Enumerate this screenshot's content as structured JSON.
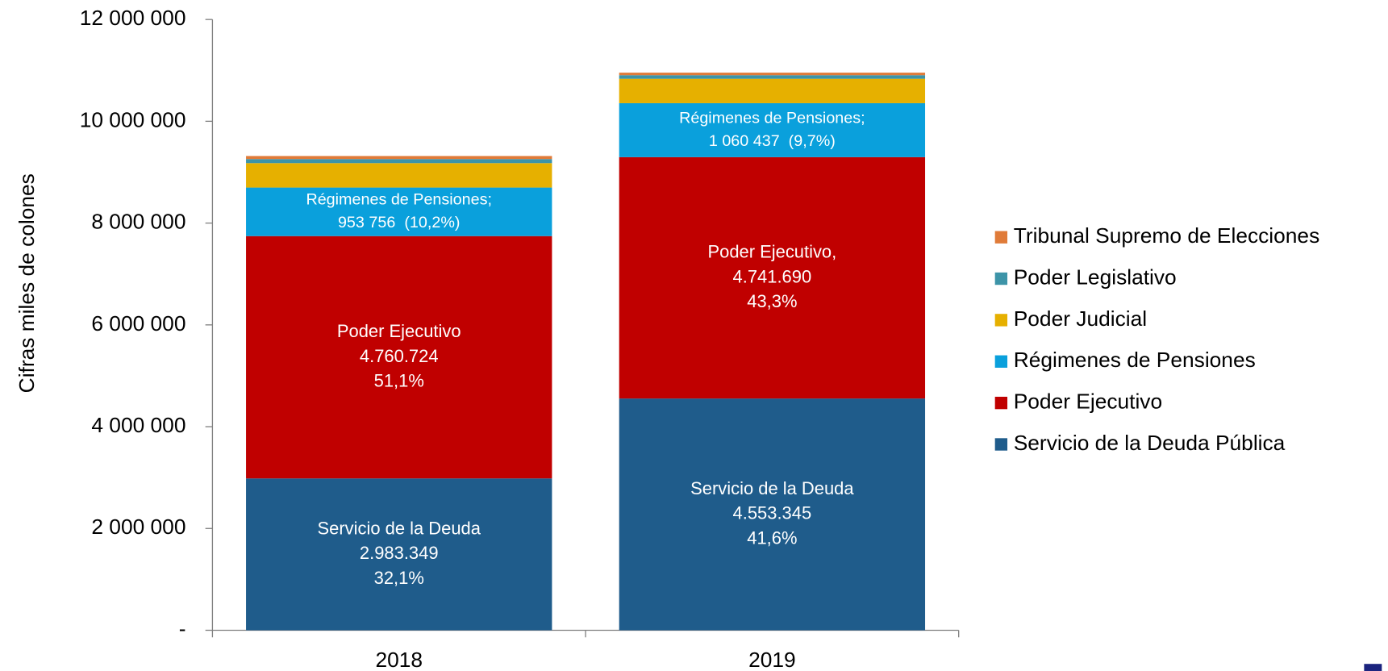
{
  "chart_data": {
    "type": "stacked_bar",
    "y_label": "Cifras miles de colones",
    "categories": [
      "2018",
      "2019"
    ],
    "ylim": [
      0,
      12000000
    ],
    "yticks": [
      {
        "value": 0,
        "label": "-"
      },
      {
        "value": 2000000,
        "label": "2 000 000"
      },
      {
        "value": 4000000,
        "label": "4 000 000"
      },
      {
        "value": 6000000,
        "label": "6 000 000"
      },
      {
        "value": 8000000,
        "label": "8 000 000"
      },
      {
        "value": 10000000,
        "label": "10 000 000"
      },
      {
        "value": 12000000,
        "label": "12 000 000"
      }
    ],
    "legend": "right",
    "series": [
      {
        "name": "Servicio de la Deuda Pública",
        "color": "#1f5c8b",
        "values": [
          2983349,
          4553345
        ],
        "value_labels": [
          [
            "Servicio de la Deuda",
            "2.983.349",
            "32,1%"
          ],
          [
            "Servicio de la Deuda",
            "4.553.345",
            "41,6%"
          ]
        ]
      },
      {
        "name": "Poder Ejecutivo",
        "color": "#c00000",
        "values": [
          4760724,
          4741690
        ],
        "value_labels": [
          [
            "Poder Ejecutivo",
            "4.760.724",
            "51,1%"
          ],
          [
            "Poder Ejecutivo,",
            "4.741.690",
            "43,3%"
          ]
        ]
      },
      {
        "name": "Régimenes de Pensiones",
        "color": "#0aa0dc",
        "values": [
          953756,
          1060437
        ],
        "value_labels": [
          [
            "Régimenes de Pensiones;",
            "953 756  (10,2%)"
          ],
          [
            "Régimenes de Pensiones;",
            "1 060 437  (9,7%)"
          ]
        ]
      },
      {
        "name": "Poder Judicial",
        "color": "#e6b000",
        "values": [
          480000,
          480000
        ],
        "value_labels": [
          null,
          null
        ]
      },
      {
        "name": "Poder Legislativo",
        "color": "#3d94a8",
        "values": [
          80000,
          70000
        ],
        "value_labels": [
          null,
          null
        ]
      },
      {
        "name": "Tribunal Supremo de Elecciones",
        "color": "#e07b39",
        "values": [
          60000,
          50000
        ],
        "value_labels": [
          null,
          null
        ]
      }
    ]
  }
}
